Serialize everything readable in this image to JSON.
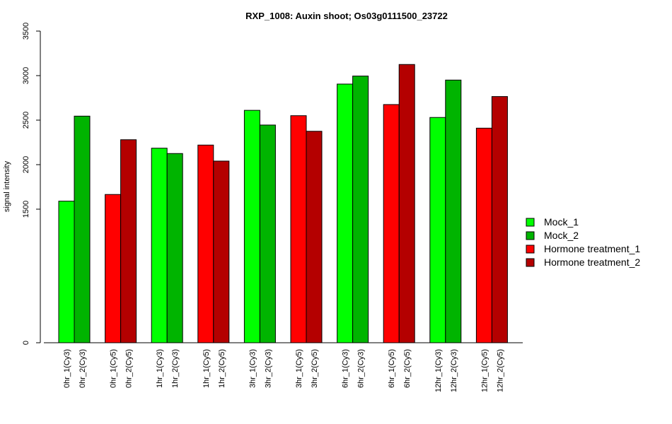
{
  "chart_data": {
    "type": "bar",
    "title": "RXP_1008: Auxin shoot; Os03g0111500_23722",
    "ylabel": "signal intensity",
    "xlabel": "",
    "ylim": [
      0,
      3500
    ],
    "yticks": [
      0,
      1500,
      2000,
      2500,
      3000,
      3500
    ],
    "categories": [
      "0hr_1(Cy3)",
      "0hr_2(Cy3)",
      "0hr_1(Cy5)",
      "0hr_2(Cy5)",
      "1hr_1(Cy3)",
      "1hr_2(Cy3)",
      "1hr_1(Cy5)",
      "1hr_2(Cy5)",
      "3hr_1(Cy3)",
      "3hr_2(Cy3)",
      "3hr_1(Cy5)",
      "3hr_2(Cy5)",
      "6hr_1(Cy3)",
      "6hr_2(Cy3)",
      "6hr_1(Cy5)",
      "6hr_2(Cy5)",
      "12hr_1(Cy3)",
      "12hr_2(Cy3)",
      "12hr_1(Cy5)",
      "12hr_2(Cy5)"
    ],
    "values": [
      1590,
      2545,
      1665,
      2280,
      2185,
      2125,
      2220,
      2040,
      2610,
      2445,
      2550,
      2375,
      2905,
      2995,
      2675,
      3125,
      2530,
      2950,
      2410,
      2765
    ],
    "bar_series": [
      0,
      1,
      2,
      3,
      0,
      1,
      2,
      3,
      0,
      1,
      2,
      3,
      0,
      1,
      2,
      3,
      0,
      1,
      2,
      3
    ],
    "series": [
      {
        "name": "Mock_1",
        "color": "#00ff00"
      },
      {
        "name": "Mock_2",
        "color": "#00b400"
      },
      {
        "name": "Hormone treatment_1",
        "color": "#ff0000"
      },
      {
        "name": "Hormone treatment_2",
        "color": "#b40000"
      }
    ],
    "legend_position": "right",
    "grid": false
  }
}
